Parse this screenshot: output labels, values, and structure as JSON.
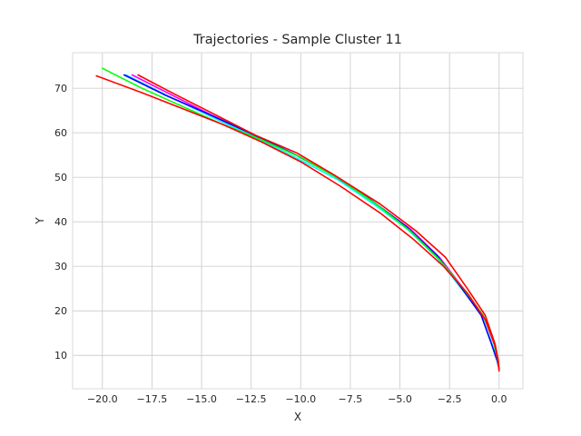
{
  "chart_data": {
    "type": "line",
    "title": "Trajectories - Sample Cluster 11",
    "xlabel": "X",
    "ylabel": "Y",
    "xlim": [
      -21.5,
      1.2
    ],
    "ylim": [
      2.5,
      78
    ],
    "xticks": [
      -20.0,
      -17.5,
      -15.0,
      -12.5,
      -10.0,
      -7.5,
      -5.0,
      -2.5,
      0.0
    ],
    "xtick_labels": [
      "−20.0",
      "−17.5",
      "−15.0",
      "−12.5",
      "−10.0",
      "−7.5",
      "−5.0",
      "−2.5",
      "0.0"
    ],
    "yticks": [
      10,
      20,
      30,
      40,
      50,
      60,
      70
    ],
    "ytick_labels": [
      "10",
      "20",
      "30",
      "40",
      "50",
      "60",
      "70"
    ],
    "grid": true,
    "series": [
      {
        "color": "#ff00ff",
        "x": [
          -18.5,
          -16.5,
          -14.5,
          -12.3,
          -10.0,
          -8.0,
          -6.2,
          -4.5,
          -3.0,
          -1.8,
          -0.9,
          -0.4,
          -0.1,
          0.0
        ],
        "y": [
          73.0,
          68.5,
          64.0,
          59.5,
          54.5,
          49.5,
          44.0,
          38.5,
          32.0,
          25.0,
          19.0,
          13.0,
          9.0,
          7.0
        ]
      },
      {
        "color": "#00ffff",
        "x": [
          -18.8,
          -16.7,
          -14.6,
          -12.4,
          -10.2,
          -8.1,
          -6.3,
          -4.6,
          -3.1,
          -1.9,
          -0.9,
          -0.4,
          -0.1,
          0.0
        ],
        "y": [
          73.0,
          68.3,
          63.8,
          59.2,
          54.3,
          49.4,
          43.9,
          38.3,
          31.8,
          25.0,
          19.2,
          13.2,
          9.0,
          7.1
        ]
      },
      {
        "color": "#0000ff",
        "x": [
          -18.9,
          -16.8,
          -14.7,
          -12.6,
          -10.4,
          -8.3,
          -6.5,
          -4.7,
          -3.1,
          -1.9,
          -0.9,
          -0.4,
          -0.1,
          0.0
        ],
        "y": [
          73.0,
          68.4,
          64.3,
          60.0,
          55.4,
          50.3,
          45.0,
          39.0,
          32.3,
          25.2,
          19.0,
          12.8,
          8.8,
          7.0
        ]
      },
      {
        "color": "#00ff00",
        "x": [
          -20.0,
          -18.0,
          -16.0,
          -14.0,
          -12.0,
          -10.0,
          -8.0,
          -6.2,
          -4.5,
          -3.0,
          -1.8,
          -0.8,
          -0.3,
          -0.1,
          0.0
        ],
        "y": [
          74.5,
          70.0,
          66.0,
          62.0,
          58.5,
          54.5,
          49.5,
          44.0,
          38.0,
          31.5,
          25.0,
          19.0,
          13.5,
          9.5,
          7.0
        ]
      },
      {
        "color": "#ff0000",
        "x": [
          -20.3,
          -18.0,
          -16.0,
          -14.0,
          -12.0,
          -10.0,
          -8.0,
          -6.0,
          -4.3,
          -2.8,
          -1.6,
          -0.7,
          -0.2,
          -0.05,
          0.0
        ],
        "y": [
          72.8,
          69.0,
          65.5,
          62.0,
          58.0,
          53.5,
          48.0,
          42.0,
          36.0,
          30.0,
          24.0,
          18.0,
          12.0,
          8.5,
          6.5
        ]
      },
      {
        "color": "#ff0000",
        "x": [
          -18.2,
          -16.5,
          -14.5,
          -12.3,
          -10.2,
          -8.3,
          -6.0,
          -4.2,
          -2.7,
          -1.6,
          -0.7,
          -0.2,
          -0.05,
          0.0
        ],
        "y": [
          73.0,
          69.0,
          64.5,
          59.5,
          55.5,
          50.5,
          44.0,
          38.0,
          32.0,
          25.0,
          19.0,
          12.5,
          9.0,
          7.0
        ]
      }
    ]
  }
}
